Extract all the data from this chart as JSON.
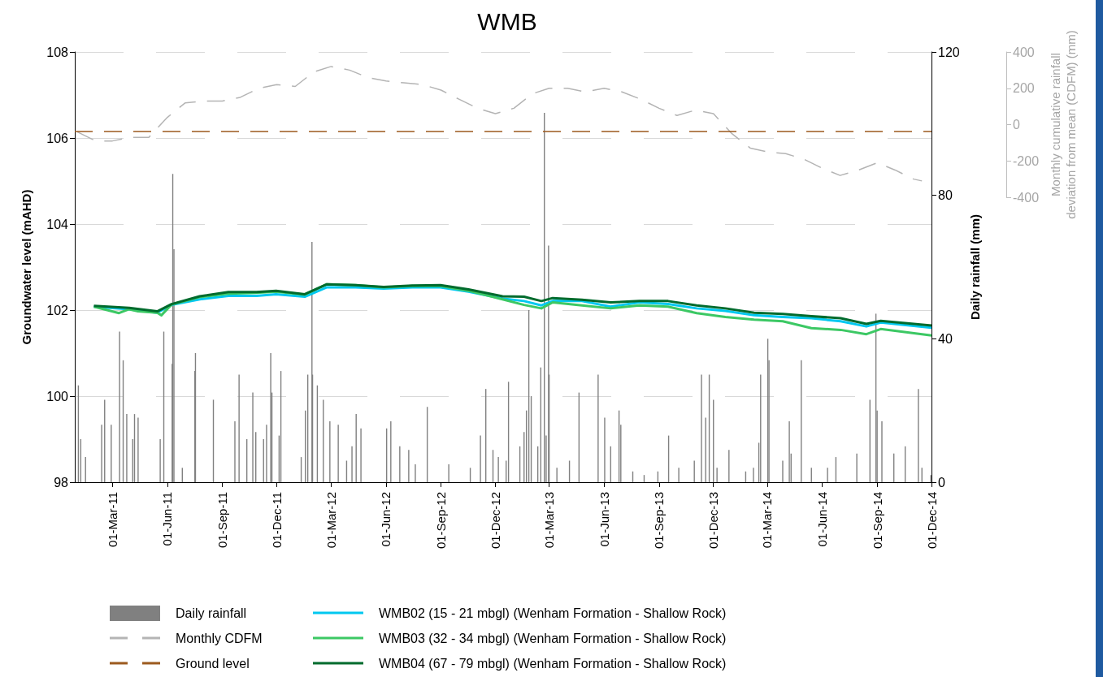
{
  "chart_data": {
    "type": "line",
    "title": "WMB",
    "ylabel": "Groundwater level (mAHD)",
    "y2label": "Daily rainfall (mm)",
    "y3label": "Monthly cumulative rainfall deviation from mean (CDFM) (mm)",
    "xlim": [
      "2010-12-28",
      "2014-12-01"
    ],
    "xticks": [
      {
        "value": "2011-03-01",
        "label": "01-Mar-11"
      },
      {
        "value": "2011-06-01",
        "label": "01-Jun-11"
      },
      {
        "value": "2011-09-01",
        "label": "01-Sep-11"
      },
      {
        "value": "2011-12-01",
        "label": "01-Dec-11"
      },
      {
        "value": "2012-03-01",
        "label": "01-Mar-12"
      },
      {
        "value": "2012-06-01",
        "label": "01-Jun-12"
      },
      {
        "value": "2012-09-01",
        "label": "01-Sep-12"
      },
      {
        "value": "2012-12-01",
        "label": "01-Dec-12"
      },
      {
        "value": "2013-03-01",
        "label": "01-Mar-13"
      },
      {
        "value": "2013-06-01",
        "label": "01-Jun-13"
      },
      {
        "value": "2013-09-01",
        "label": "01-Sep-13"
      },
      {
        "value": "2013-12-01",
        "label": "01-Dec-13"
      },
      {
        "value": "2014-03-01",
        "label": "01-Mar-14"
      },
      {
        "value": "2014-06-01",
        "label": "01-Jun-14"
      },
      {
        "value": "2014-09-01",
        "label": "01-Sep-14"
      },
      {
        "value": "2014-12-01",
        "label": "01-Dec-14"
      }
    ],
    "ylim": [
      98,
      108
    ],
    "yticks": [
      98,
      100,
      102,
      104,
      106,
      108
    ],
    "y2lim": [
      0,
      120
    ],
    "y2ticks": [
      0,
      40,
      80,
      120
    ],
    "y3lim": [
      -400,
      400
    ],
    "y3ticks": [
      -400,
      -200,
      0,
      200,
      400
    ],
    "grid": "y",
    "legend": "bottom",
    "marker": "none",
    "series": [
      {
        "type": "bar",
        "name": "Daily rainfall",
        "axis": "y2",
        "color": "#808080",
        "x": [
          "2011-01-03",
          "2011-01-07",
          "2011-01-15",
          "2011-02-11",
          "2011-02-16",
          "2011-02-27",
          "2011-03-13",
          "2011-03-19",
          "2011-03-25",
          "2011-04-04",
          "2011-04-07",
          "2011-04-13",
          "2011-05-20",
          "2011-05-26",
          "2011-06-09",
          "2011-06-10",
          "2011-06-12",
          "2011-06-26",
          "2011-07-17",
          "2011-07-18",
          "2011-08-17",
          "2011-09-22",
          "2011-09-29",
          "2011-10-12",
          "2011-10-22",
          "2011-10-27",
          "2011-11-09",
          "2011-11-14",
          "2011-11-21",
          "2011-11-23",
          "2011-12-05",
          "2011-12-08",
          "2012-01-11",
          "2012-01-18",
          "2012-01-22",
          "2012-01-29",
          "2012-01-30",
          "2012-02-07",
          "2012-02-17",
          "2012-02-28",
          "2012-03-13",
          "2012-03-27",
          "2012-04-05",
          "2012-04-12",
          "2012-04-20",
          "2012-06-02",
          "2012-06-09",
          "2012-06-24",
          "2012-07-09",
          "2012-07-20",
          "2012-08-09",
          "2012-09-14",
          "2012-10-20",
          "2012-11-06",
          "2012-11-15",
          "2012-11-27",
          "2012-12-06",
          "2012-12-19",
          "2012-12-23",
          "2013-01-11",
          "2013-01-18",
          "2013-01-22",
          "2013-01-26",
          "2013-01-30",
          "2013-02-10",
          "2013-02-15",
          "2013-02-21",
          "2013-02-24",
          "2013-02-28",
          "2013-03-01",
          "2013-03-14",
          "2013-04-04",
          "2013-04-20",
          "2013-05-22",
          "2013-06-02",
          "2013-06-12",
          "2013-06-26",
          "2013-06-29",
          "2013-07-19",
          "2013-08-07",
          "2013-08-30",
          "2013-09-17",
          "2013-10-04",
          "2013-10-30",
          "2013-11-11",
          "2013-11-18",
          "2013-11-24",
          "2013-12-01",
          "2013-12-07",
          "2013-12-27",
          "2014-01-24",
          "2014-02-06",
          "2014-02-15",
          "2014-02-18",
          "2014-03-02",
          "2014-03-04",
          "2014-03-27",
          "2014-04-07",
          "2014-04-10",
          "2014-04-27",
          "2014-05-14",
          "2014-06-10",
          "2014-06-24",
          "2014-07-29",
          "2014-08-20",
          "2014-08-30",
          "2014-09-01",
          "2014-09-09",
          "2014-09-29",
          "2014-10-18",
          "2014-11-09",
          "2014-11-15",
          "2014-11-30"
        ],
        "values": [
          27,
          12,
          7,
          16,
          23,
          16,
          42,
          34,
          19,
          12,
          19,
          18,
          12,
          42,
          33,
          86,
          65,
          4,
          31,
          36,
          23,
          17,
          30,
          12,
          25,
          14,
          12,
          16,
          36,
          25,
          13,
          31,
          7,
          20,
          30,
          67,
          30,
          27,
          23,
          17,
          16,
          6,
          10,
          19,
          15,
          15,
          17,
          10,
          9,
          5,
          21,
          5,
          4,
          13,
          26,
          9,
          7,
          6,
          28,
          10,
          14,
          20,
          48,
          24,
          10,
          32,
          103,
          13,
          66,
          30,
          4,
          6,
          25,
          30,
          18,
          10,
          20,
          16,
          3,
          2,
          3,
          13,
          4,
          6,
          30,
          18,
          30,
          23,
          4,
          9,
          3,
          4,
          11,
          30,
          40,
          34,
          6,
          17,
          8,
          34,
          4,
          4,
          7,
          8,
          23,
          47,
          20,
          17,
          8,
          10,
          26,
          4,
          2
        ]
      },
      {
        "name": "Monthly CDFM",
        "axis": "y3",
        "color": "#b4b4b4",
        "line_style": "dashed",
        "x": [
          "2011-01-01",
          "2011-02-01",
          "2011-03-01",
          "2011-04-01",
          "2011-05-01",
          "2011-06-01",
          "2011-07-01",
          "2011-08-01",
          "2011-09-01",
          "2011-10-01",
          "2011-11-01",
          "2011-12-01",
          "2012-01-01",
          "2012-02-01",
          "2012-03-01",
          "2012-04-01",
          "2012-05-01",
          "2012-06-01",
          "2012-07-01",
          "2012-08-01",
          "2012-09-01",
          "2012-10-01",
          "2012-11-01",
          "2012-12-01",
          "2013-01-01",
          "2013-02-01",
          "2013-03-01",
          "2013-04-01",
          "2013-05-01",
          "2013-06-01",
          "2013-07-01",
          "2013-08-01",
          "2013-09-01",
          "2013-10-01",
          "2013-11-01",
          "2013-12-01",
          "2014-01-01",
          "2014-02-01",
          "2014-03-01",
          "2014-04-01",
          "2014-05-01",
          "2014-06-01",
          "2014-07-01",
          "2014-08-01",
          "2014-09-01",
          "2014-10-01",
          "2014-11-01",
          "2014-11-15"
        ],
        "values": [
          -40,
          -90,
          -90,
          -70,
          -70,
          40,
          120,
          130,
          130,
          150,
          200,
          220,
          210,
          290,
          320,
          300,
          260,
          240,
          230,
          220,
          190,
          140,
          90,
          60,
          90,
          170,
          200,
          200,
          180,
          200,
          180,
          140,
          90,
          50,
          80,
          60,
          -50,
          -130,
          -150,
          -160,
          -190,
          -240,
          -280,
          -250,
          -210,
          -250,
          -300,
          -310
        ]
      },
      {
        "name": "Ground level",
        "color": "#9c5a1e",
        "line_style": "dashed",
        "x": [
          "2010-12-28",
          "2014-12-01"
        ],
        "values": [
          106.15,
          106.15
        ]
      },
      {
        "name": "WMB02 (15 - 21 mbgl) (Wenham Formation - Shallow Rock)",
        "color": "#00c8f0",
        "x": [
          "2011-01-29",
          "2011-03-29",
          "2011-05-15",
          "2011-06-08",
          "2011-07-25",
          "2011-09-11",
          "2011-10-28",
          "2011-11-30",
          "2012-01-17",
          "2012-02-23",
          "2012-04-11",
          "2012-05-28",
          "2012-07-15",
          "2012-08-31",
          "2012-10-17",
          "2012-12-13",
          "2013-01-18",
          "2013-02-16",
          "2013-03-07",
          "2013-04-25",
          "2013-06-12",
          "2013-07-30",
          "2013-09-16",
          "2013-11-03",
          "2013-12-21",
          "2014-02-07",
          "2014-03-27",
          "2014-05-14",
          "2014-07-02",
          "2014-08-14",
          "2014-09-07",
          "2014-12-01"
        ],
        "values": [
          102.08,
          102.02,
          101.94,
          102.12,
          102.25,
          102.33,
          102.33,
          102.37,
          102.31,
          102.53,
          102.53,
          102.5,
          102.53,
          102.53,
          102.43,
          102.27,
          102.21,
          102.11,
          102.21,
          102.21,
          102.08,
          102.18,
          102.14,
          102.04,
          101.98,
          101.88,
          101.84,
          101.81,
          101.74,
          101.62,
          101.71,
          101.59
        ]
      },
      {
        "name": "WMB03 (32 - 34 mbgl) (Wenham Formation - Shallow Rock)",
        "color": "#3cc864",
        "x": [
          "2011-01-29",
          "2011-03-12",
          "2011-03-29",
          "2011-04-13",
          "2011-05-15",
          "2011-05-22",
          "2011-06-08",
          "2011-07-25",
          "2011-09-11",
          "2011-10-28",
          "2011-11-30",
          "2012-01-17",
          "2012-02-23",
          "2012-04-11",
          "2012-05-28",
          "2012-07-15",
          "2012-08-31",
          "2012-10-17",
          "2012-12-13",
          "2013-01-18",
          "2013-02-16",
          "2013-03-07",
          "2013-04-25",
          "2013-06-12",
          "2013-07-30",
          "2013-09-16",
          "2013-11-03",
          "2013-12-21",
          "2014-02-07",
          "2014-03-27",
          "2014-05-14",
          "2014-07-02",
          "2014-08-14",
          "2014-09-07",
          "2014-12-01"
        ],
        "values": [
          102.08,
          101.93,
          102.02,
          101.97,
          101.94,
          101.88,
          102.13,
          102.3,
          102.38,
          102.4,
          102.43,
          102.36,
          102.6,
          102.58,
          102.53,
          102.56,
          102.56,
          102.45,
          102.25,
          102.12,
          102.04,
          102.18,
          102.11,
          102.04,
          102.11,
          102.08,
          101.93,
          101.84,
          101.78,
          101.74,
          101.58,
          101.54,
          101.44,
          101.56,
          101.41
        ]
      },
      {
        "name": "WMB04 (67 - 79 mbgl) (Wenham Formation - Shallow Rock)",
        "color": "#006b2d",
        "x": [
          "2011-01-29",
          "2011-03-29",
          "2011-05-15",
          "2011-06-08",
          "2011-07-25",
          "2011-09-11",
          "2011-10-28",
          "2011-11-30",
          "2012-01-17",
          "2012-02-23",
          "2012-04-11",
          "2012-05-28",
          "2012-07-15",
          "2012-08-31",
          "2012-10-17",
          "2012-12-13",
          "2013-01-18",
          "2013-02-16",
          "2013-03-07",
          "2013-04-25",
          "2013-06-12",
          "2013-07-30",
          "2013-09-16",
          "2013-11-03",
          "2013-12-21",
          "2014-02-07",
          "2014-03-27",
          "2014-05-14",
          "2014-07-02",
          "2014-08-14",
          "2014-09-07",
          "2014-12-01"
        ],
        "values": [
          102.1,
          102.05,
          101.97,
          102.14,
          102.32,
          102.42,
          102.42,
          102.45,
          102.37,
          102.6,
          102.58,
          102.54,
          102.57,
          102.58,
          102.48,
          102.32,
          102.31,
          102.21,
          102.28,
          102.24,
          102.18,
          102.21,
          102.21,
          102.11,
          102.04,
          101.94,
          101.91,
          101.86,
          101.81,
          101.68,
          101.75,
          101.64
        ]
      }
    ]
  }
}
